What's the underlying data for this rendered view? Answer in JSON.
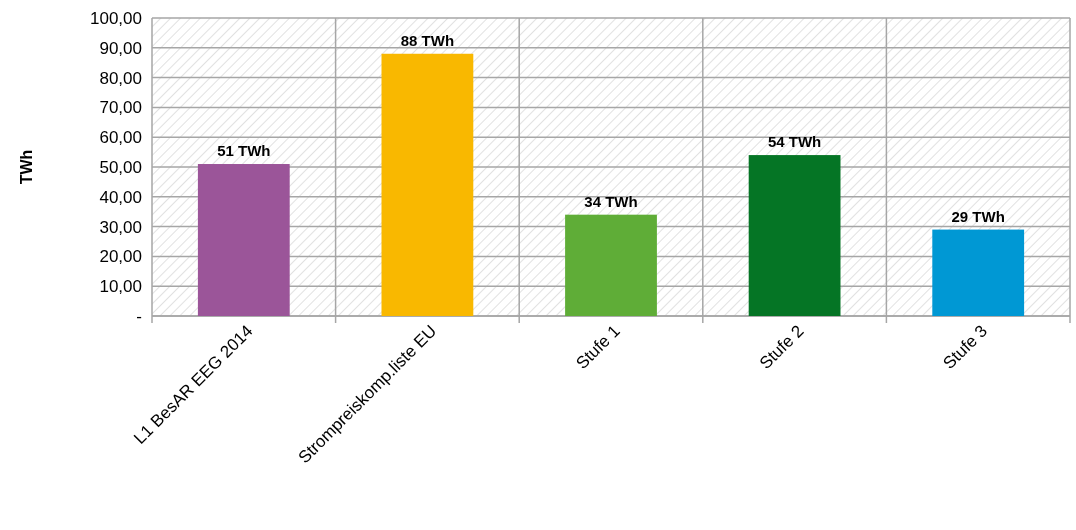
{
  "chart_data": {
    "type": "bar",
    "ylabel": "TWh",
    "categories": [
      "L1 BesAR EEG 2014",
      "Strompreiskomp.liste EU",
      "Stufe 1",
      "Stufe 2",
      "Stufe 3"
    ],
    "values": [
      51,
      88,
      34,
      54,
      29
    ],
    "value_labels": [
      "51 TWh",
      "88 TWh",
      "34 TWh",
      "54 TWh",
      "29 TWh"
    ],
    "colors": [
      "#9b5599",
      "#f9b800",
      "#5fad37",
      "#057525",
      "#0098d4"
    ],
    "ylim": [
      0,
      100
    ],
    "yticks": [
      {
        "value": 0,
        "label": "-"
      },
      {
        "value": 10,
        "label": "10,00"
      },
      {
        "value": 20,
        "label": "20,00"
      },
      {
        "value": 30,
        "label": "30,00"
      },
      {
        "value": 40,
        "label": "40,00"
      },
      {
        "value": 50,
        "label": "50,00"
      },
      {
        "value": 60,
        "label": "60,00"
      },
      {
        "value": 70,
        "label": "70,00"
      },
      {
        "value": 80,
        "label": "80,00"
      },
      {
        "value": 90,
        "label": "90,00"
      },
      {
        "value": 100,
        "label": "100,00"
      }
    ],
    "grid": true
  }
}
